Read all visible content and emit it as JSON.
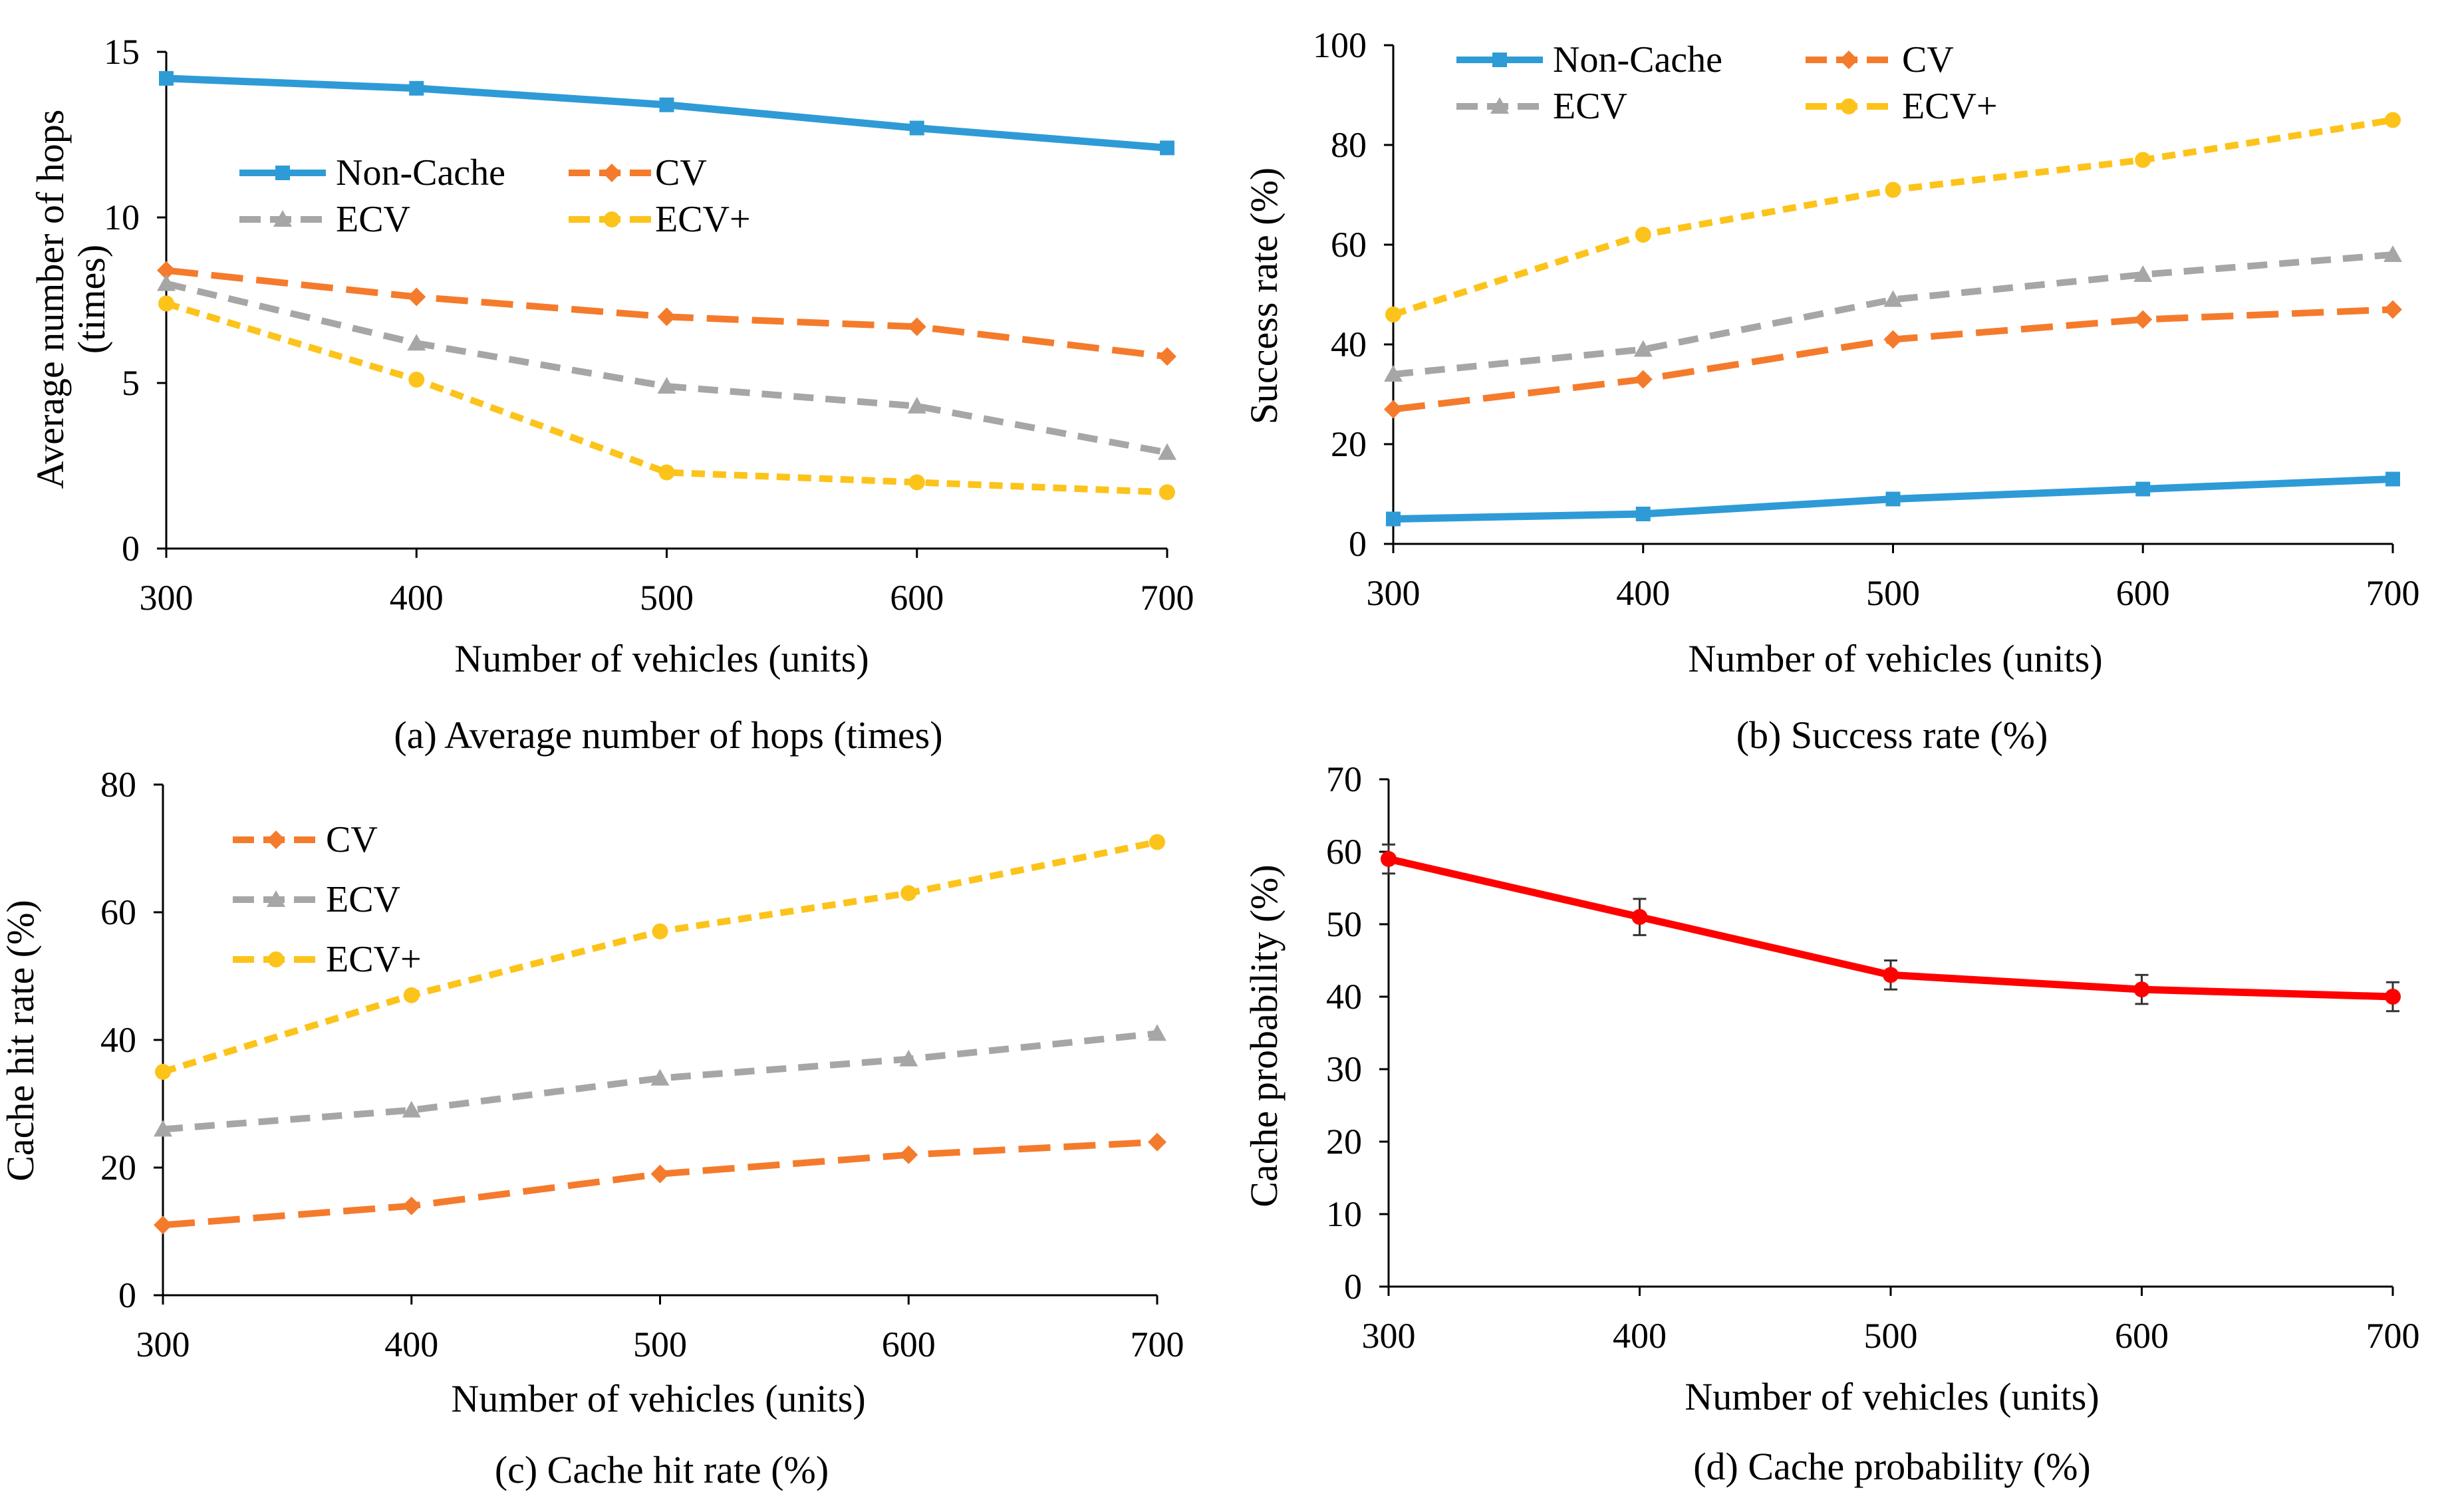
{
  "figure_colors": {
    "Non-Cache": "#2E9BD6",
    "CV": "#F47B2C",
    "ECV": "#A6A6A6",
    "ECV+": "#FCC31A",
    "cache_probability": "#FF0000",
    "axis": "#000000"
  },
  "chart_data": [
    {
      "type": "line",
      "caption": "(a) Average number of hops (times)",
      "title": "",
      "xlabel": "Number of vehicles (units)",
      "ylabel": "Average number of hops (times)",
      "ylabel_lines": [
        "Average number of hops",
        "(times)"
      ],
      "categories": [
        "300",
        "400",
        "500",
        "600",
        "700"
      ],
      "x": [
        300,
        400,
        500,
        600,
        700
      ],
      "ylim": [
        0,
        15
      ],
      "yticks": [
        0,
        5,
        10,
        15
      ],
      "legend_position": "center-left",
      "series": [
        {
          "name": "Non-Cache",
          "style": "solid",
          "marker": "square",
          "values": [
            14.2,
            13.9,
            13.4,
            12.7,
            12.1
          ]
        },
        {
          "name": "CV",
          "style": "long-dash",
          "marker": "diamond",
          "values": [
            8.4,
            7.6,
            7.0,
            6.7,
            5.8
          ]
        },
        {
          "name": "ECV",
          "style": "dash",
          "marker": "triangle",
          "values": [
            8.0,
            6.2,
            4.9,
            4.3,
            2.9
          ]
        },
        {
          "name": "ECV+",
          "style": "short-dash",
          "marker": "circle",
          "values": [
            7.4,
            5.1,
            2.3,
            2.0,
            1.7
          ]
        }
      ]
    },
    {
      "type": "line",
      "caption": "(b) Success rate (%)",
      "title": "",
      "xlabel": "Number of vehicles (units)",
      "ylabel": "Success rate (%)",
      "ylabel_lines": [
        "Success rate (%)"
      ],
      "categories": [
        "300",
        "400",
        "500",
        "600",
        "700"
      ],
      "x": [
        300,
        400,
        500,
        600,
        700
      ],
      "ylim": [
        0,
        100
      ],
      "yticks": [
        0,
        20,
        40,
        60,
        80,
        100
      ],
      "legend_position": "top-left",
      "series": [
        {
          "name": "Non-Cache",
          "style": "solid",
          "marker": "square",
          "values": [
            5,
            6,
            9,
            11,
            13
          ]
        },
        {
          "name": "CV",
          "style": "long-dash",
          "marker": "diamond",
          "values": [
            27,
            33,
            41,
            45,
            47
          ]
        },
        {
          "name": "ECV",
          "style": "dash",
          "marker": "triangle",
          "values": [
            34,
            39,
            49,
            54,
            58
          ]
        },
        {
          "name": "ECV+",
          "style": "short-dash",
          "marker": "circle",
          "values": [
            46,
            62,
            71,
            77,
            85
          ]
        }
      ]
    },
    {
      "type": "line",
      "caption": "(c) Cache hit rate (%)",
      "title": "",
      "xlabel": "Number of vehicles (units)",
      "ylabel": "Cache hit rate (%)",
      "ylabel_lines": [
        "Cache hit rate (%)"
      ],
      "categories": [
        "300",
        "400",
        "500",
        "600",
        "700"
      ],
      "x": [
        300,
        400,
        500,
        600,
        700
      ],
      "ylim": [
        0,
        80
      ],
      "yticks": [
        0,
        20,
        40,
        60,
        80
      ],
      "legend_position": "top-left",
      "series": [
        {
          "name": "CV",
          "style": "long-dash",
          "marker": "diamond",
          "values": [
            11,
            14,
            19,
            22,
            24
          ]
        },
        {
          "name": "ECV",
          "style": "dash",
          "marker": "triangle",
          "values": [
            26,
            29,
            34,
            37,
            41
          ]
        },
        {
          "name": "ECV+",
          "style": "short-dash",
          "marker": "circle",
          "values": [
            35,
            47,
            57,
            63,
            71
          ]
        }
      ]
    },
    {
      "type": "line",
      "caption": "(d) Cache probability (%)",
      "title": "",
      "xlabel": "Number of vehicles (units)",
      "ylabel": "Cache probability (%)",
      "ylabel_lines": [
        "Cache probability (%)"
      ],
      "categories": [
        "300",
        "400",
        "500",
        "600",
        "700"
      ],
      "x": [
        300,
        400,
        500,
        600,
        700
      ],
      "ylim": [
        0,
        70
      ],
      "yticks": [
        0,
        10,
        20,
        30,
        40,
        50,
        60,
        70
      ],
      "legend_position": "none",
      "series": [
        {
          "name": "Cache probability",
          "style": "solid",
          "marker": "circle",
          "values": [
            59,
            51,
            43,
            41,
            40
          ],
          "error": [
            2,
            2.5,
            2,
            2,
            2
          ]
        }
      ]
    }
  ]
}
